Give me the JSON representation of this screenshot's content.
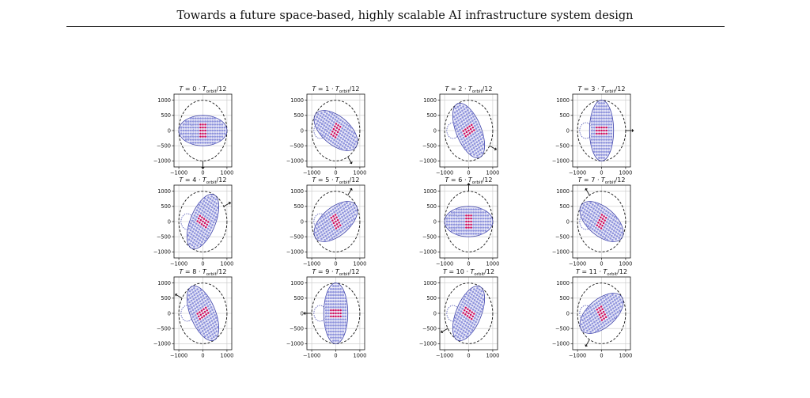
{
  "header": {
    "title": "Towards a future space-based, highly scalable AI infrastructure system design"
  },
  "figure": {
    "panel_title_template": "T = {k} · T_orbit/12",
    "title_prefix": "T = ",
    "title_mid": " · T",
    "title_sub": "orbit",
    "title_suffix": "/12",
    "colors": {
      "grid": "#c8c8c8",
      "dots": "#8f94dc",
      "center_dots": "#d10a5a",
      "formation_outline": "#3a3fa8",
      "formation_fill": "#dcdcf4",
      "orbit_circle": "#111111",
      "arrow": "#111111"
    }
  },
  "chart_data": [
    {
      "type": "scatter",
      "title": "T = 0 · T_orbit/12",
      "k": 0,
      "ellipse_angle_deg": 0,
      "arrow_angle_deg": 270,
      "x_ticks": [
        -1000,
        0,
        1000
      ],
      "y_ticks": [
        1000,
        500,
        0,
        -500,
        -1000
      ],
      "xlim": [
        -1200,
        1200
      ],
      "ylim": [
        -1200,
        1200
      ],
      "grid": true
    },
    {
      "type": "scatter",
      "title": "T = 1 · T_orbit/12",
      "k": 1,
      "ellipse_angle_deg": 30,
      "arrow_angle_deg": 300,
      "x_ticks": [
        -1000,
        0,
        1000
      ],
      "y_ticks": [
        1000,
        500,
        0,
        -500,
        -1000
      ],
      "xlim": [
        -1200,
        1200
      ],
      "ylim": [
        -1200,
        1200
      ],
      "grid": true
    },
    {
      "type": "scatter",
      "title": "T = 2 · T_orbit/12",
      "k": 2,
      "ellipse_angle_deg": 60,
      "arrow_angle_deg": 330,
      "x_ticks": [
        -1000,
        0,
        1000
      ],
      "y_ticks": [
        1000,
        500,
        0,
        -500,
        -1000
      ],
      "xlim": [
        -1200,
        1200
      ],
      "ylim": [
        -1200,
        1200
      ],
      "grid": true
    },
    {
      "type": "scatter",
      "title": "T = 3 · T_orbit/12",
      "k": 3,
      "ellipse_angle_deg": 90,
      "arrow_angle_deg": 0,
      "x_ticks": [
        -1000,
        0,
        1000
      ],
      "y_ticks": [
        1000,
        500,
        0,
        -500,
        -1000
      ],
      "xlim": [
        -1200,
        1200
      ],
      "ylim": [
        -1200,
        1200
      ],
      "grid": true
    },
    {
      "type": "scatter",
      "title": "T = 4 · T_orbit/12",
      "k": 4,
      "ellipse_angle_deg": 120,
      "arrow_angle_deg": 30,
      "x_ticks": [
        -1000,
        0,
        1000
      ],
      "y_ticks": [
        1000,
        500,
        0,
        -500,
        -1000
      ],
      "xlim": [
        -1200,
        1200
      ],
      "ylim": [
        -1200,
        1200
      ],
      "grid": true
    },
    {
      "type": "scatter",
      "title": "T = 5 · T_orbit/12",
      "k": 5,
      "ellipse_angle_deg": 150,
      "arrow_angle_deg": 60,
      "x_ticks": [
        -1000,
        0,
        1000
      ],
      "y_ticks": [
        1000,
        500,
        0,
        -500,
        -1000
      ],
      "xlim": [
        -1200,
        1200
      ],
      "ylim": [
        -1200,
        1200
      ],
      "grid": true
    },
    {
      "type": "scatter",
      "title": "T = 6 · T_orbit/12",
      "k": 6,
      "ellipse_angle_deg": 180,
      "arrow_angle_deg": 90,
      "x_ticks": [
        -1000,
        0,
        1000
      ],
      "y_ticks": [
        1000,
        500,
        0,
        -500,
        -1000
      ],
      "xlim": [
        -1200,
        1200
      ],
      "ylim": [
        -1200,
        1200
      ],
      "grid": true
    },
    {
      "type": "scatter",
      "title": "T = 7 · T_orbit/12",
      "k": 7,
      "ellipse_angle_deg": 210,
      "arrow_angle_deg": 120,
      "x_ticks": [
        -1000,
        0,
        1000
      ],
      "y_ticks": [
        1000,
        500,
        0,
        -500,
        -1000
      ],
      "xlim": [
        -1200,
        1200
      ],
      "ylim": [
        -1200,
        1200
      ],
      "grid": true
    },
    {
      "type": "scatter",
      "title": "T = 8 · T_orbit/12",
      "k": 8,
      "ellipse_angle_deg": 240,
      "arrow_angle_deg": 150,
      "x_ticks": [
        -1000,
        0,
        1000
      ],
      "y_ticks": [
        1000,
        500,
        0,
        -500,
        -1000
      ],
      "xlim": [
        -1200,
        1200
      ],
      "ylim": [
        -1200,
        1200
      ],
      "grid": true
    },
    {
      "type": "scatter",
      "title": "T = 9 · T_orbit/12",
      "k": 9,
      "ellipse_angle_deg": 270,
      "arrow_angle_deg": 180,
      "x_ticks": [
        -1000,
        0,
        1000
      ],
      "y_ticks": [
        1000,
        500,
        0,
        -500,
        -1000
      ],
      "xlim": [
        -1200,
        1200
      ],
      "ylim": [
        -1200,
        1200
      ],
      "grid": true
    },
    {
      "type": "scatter",
      "title": "T = 10 · T_orbit/12",
      "k": 10,
      "ellipse_angle_deg": 300,
      "arrow_angle_deg": 210,
      "x_ticks": [
        -1000,
        0,
        1000
      ],
      "y_ticks": [
        1000,
        500,
        0,
        -500,
        -1000
      ],
      "xlim": [
        -1200,
        1200
      ],
      "ylim": [
        -1200,
        1200
      ],
      "grid": true
    },
    {
      "type": "scatter",
      "title": "T = 11 · T_orbit/12",
      "k": 11,
      "ellipse_angle_deg": 330,
      "arrow_angle_deg": 240,
      "x_ticks": [
        -1000,
        0,
        1000
      ],
      "y_ticks": [
        1000,
        500,
        0,
        -500,
        -1000
      ],
      "xlim": [
        -1200,
        1200
      ],
      "ylim": [
        -1200,
        1200
      ],
      "grid": true
    }
  ]
}
